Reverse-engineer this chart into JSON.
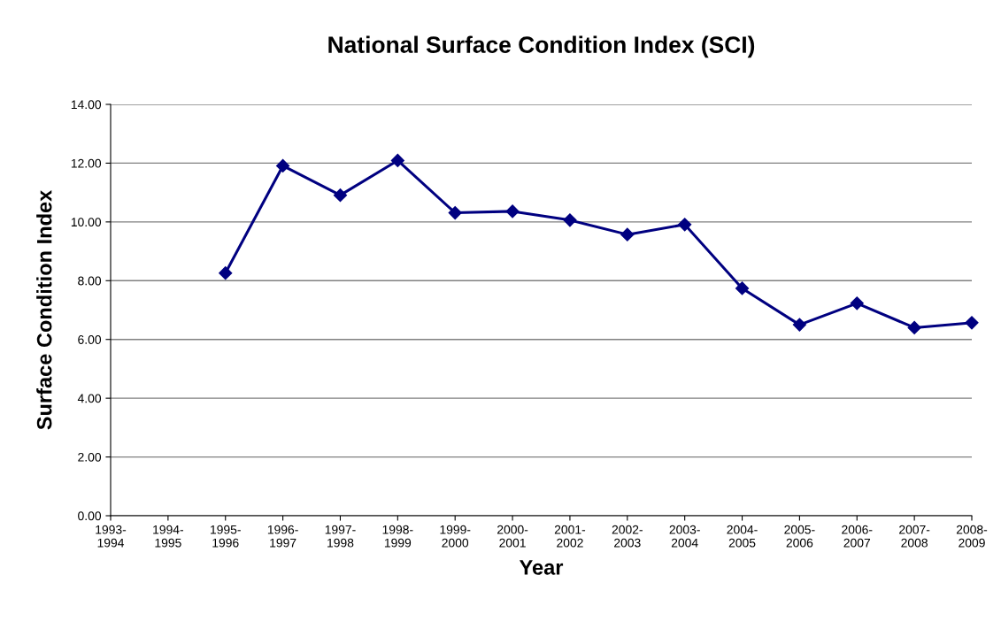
{
  "chart_data": {
    "type": "line",
    "title": "National Surface Condition Index (SCI)",
    "xlabel": "Year",
    "ylabel": "Surface Condition Index",
    "categories": [
      "1993-\n1994",
      "1994-\n1995",
      "1995-\n1996",
      "1996-\n1997",
      "1997-\n1998",
      "1998-\n1999",
      "1999-\n2000",
      "2000-\n2001",
      "2001-\n2002",
      "2002-\n2003",
      "2003-\n2004",
      "2004-\n2005",
      "2005-\n2006",
      "2006-\n2007",
      "2007-\n2008",
      "2008-\n2009"
    ],
    "series": [
      {
        "color": "#000080",
        "values": [
          null,
          null,
          8.26,
          11.91,
          10.91,
          12.09,
          10.31,
          10.36,
          10.06,
          9.57,
          9.91,
          7.74,
          6.5,
          7.23,
          6.4,
          6.57
        ]
      }
    ],
    "ylim": [
      0,
      14
    ],
    "yticks": [
      {
        "value": 0,
        "label": "0.00"
      },
      {
        "value": 2,
        "label": "2.00"
      },
      {
        "value": 4,
        "label": "4.00"
      },
      {
        "value": 6,
        "label": "6.00"
      },
      {
        "value": 8,
        "label": "8.00"
      },
      {
        "value": 10,
        "label": "10.00"
      },
      {
        "value": 12,
        "label": "12.00"
      },
      {
        "value": 14,
        "label": "14.00"
      }
    ],
    "grid": "y",
    "marker": "diamond",
    "line_style": "solid"
  }
}
